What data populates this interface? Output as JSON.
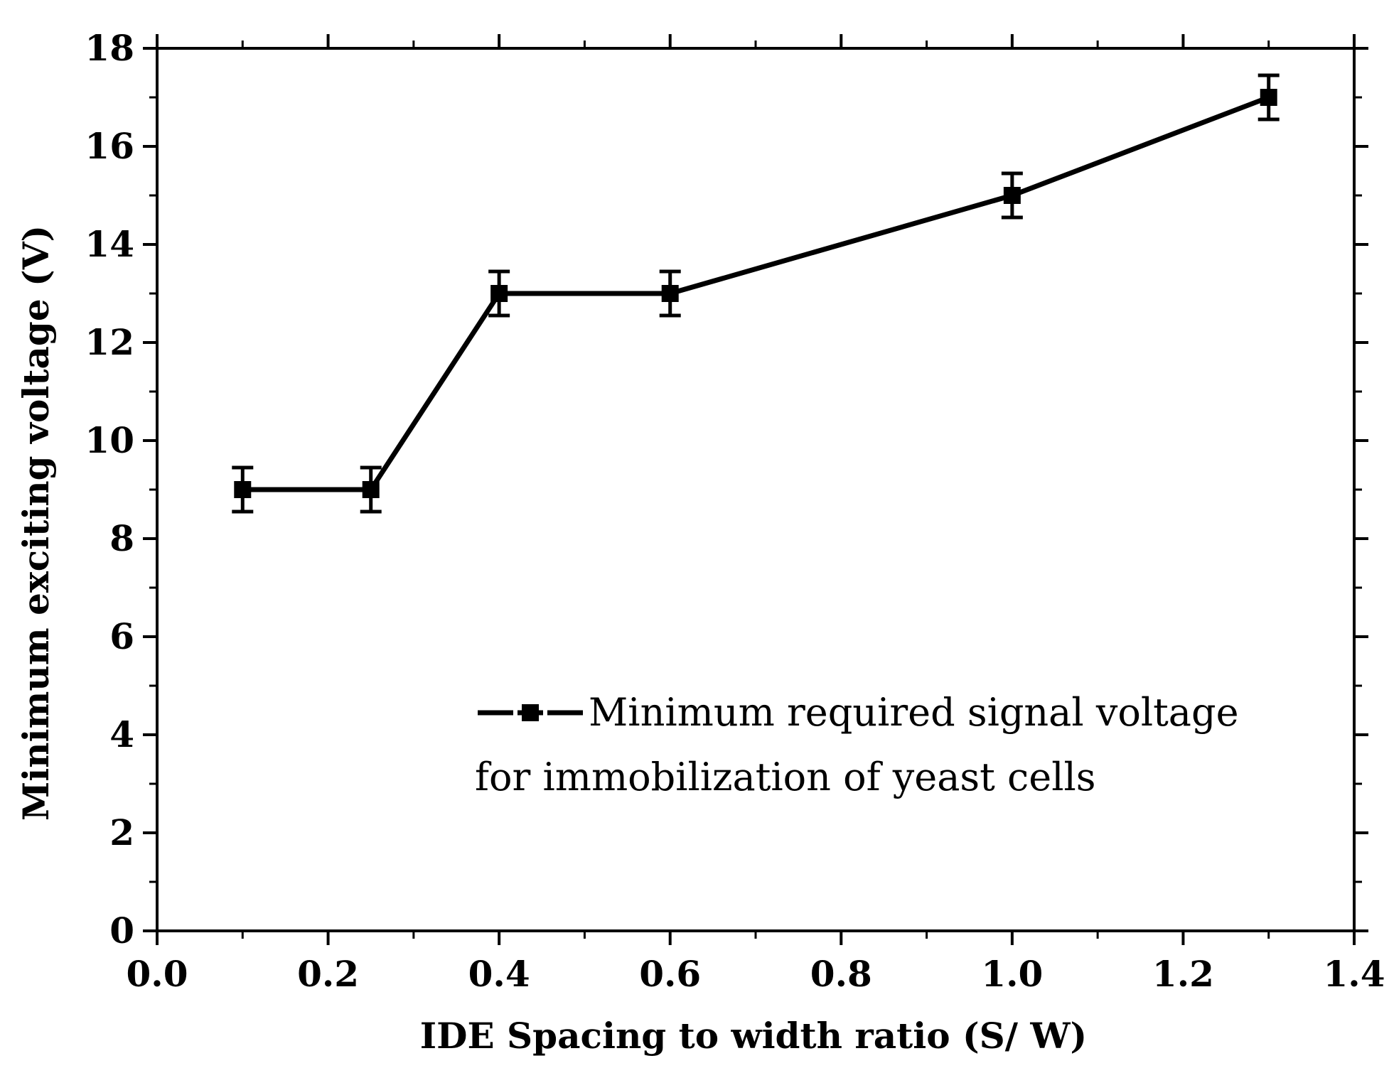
{
  "chart_data": {
    "type": "line",
    "title": "",
    "xlabel": "IDE Spacing to width ratio (S/ W)",
    "ylabel": "Minimum exciting  voltage (V)",
    "xlim": [
      0,
      1.4
    ],
    "ylim": [
      0,
      18
    ],
    "xticks": [
      0.0,
      0.2,
      0.4,
      0.6,
      0.8,
      1.0,
      1.2,
      1.4
    ],
    "xtick_labels": [
      "0.0",
      "0.2",
      "0.4",
      "0.6",
      "0.8",
      "1.0",
      "1.2",
      "1.4"
    ],
    "yticks": [
      0,
      2,
      4,
      6,
      8,
      10,
      12,
      14,
      16,
      18
    ],
    "ytick_labels": [
      "0",
      "2",
      "4",
      "6",
      "8",
      "10",
      "12",
      "14",
      "16",
      "18"
    ],
    "grid": false,
    "legend_position": "lower-right",
    "series": [
      {
        "name": "Minimum required signal voltage for immobilization of yeast cells",
        "legend_lines": [
          "Minimum required signal voltage",
          "for immobilization of yeast cells"
        ],
        "marker": "square",
        "color": "#000000",
        "x": [
          0.1,
          0.25,
          0.4,
          0.6,
          1.0,
          1.3
        ],
        "y": [
          9,
          9,
          13,
          13,
          15,
          17
        ],
        "error": [
          0.45,
          0.45,
          0.45,
          0.45,
          0.45,
          0.45
        ]
      }
    ]
  }
}
